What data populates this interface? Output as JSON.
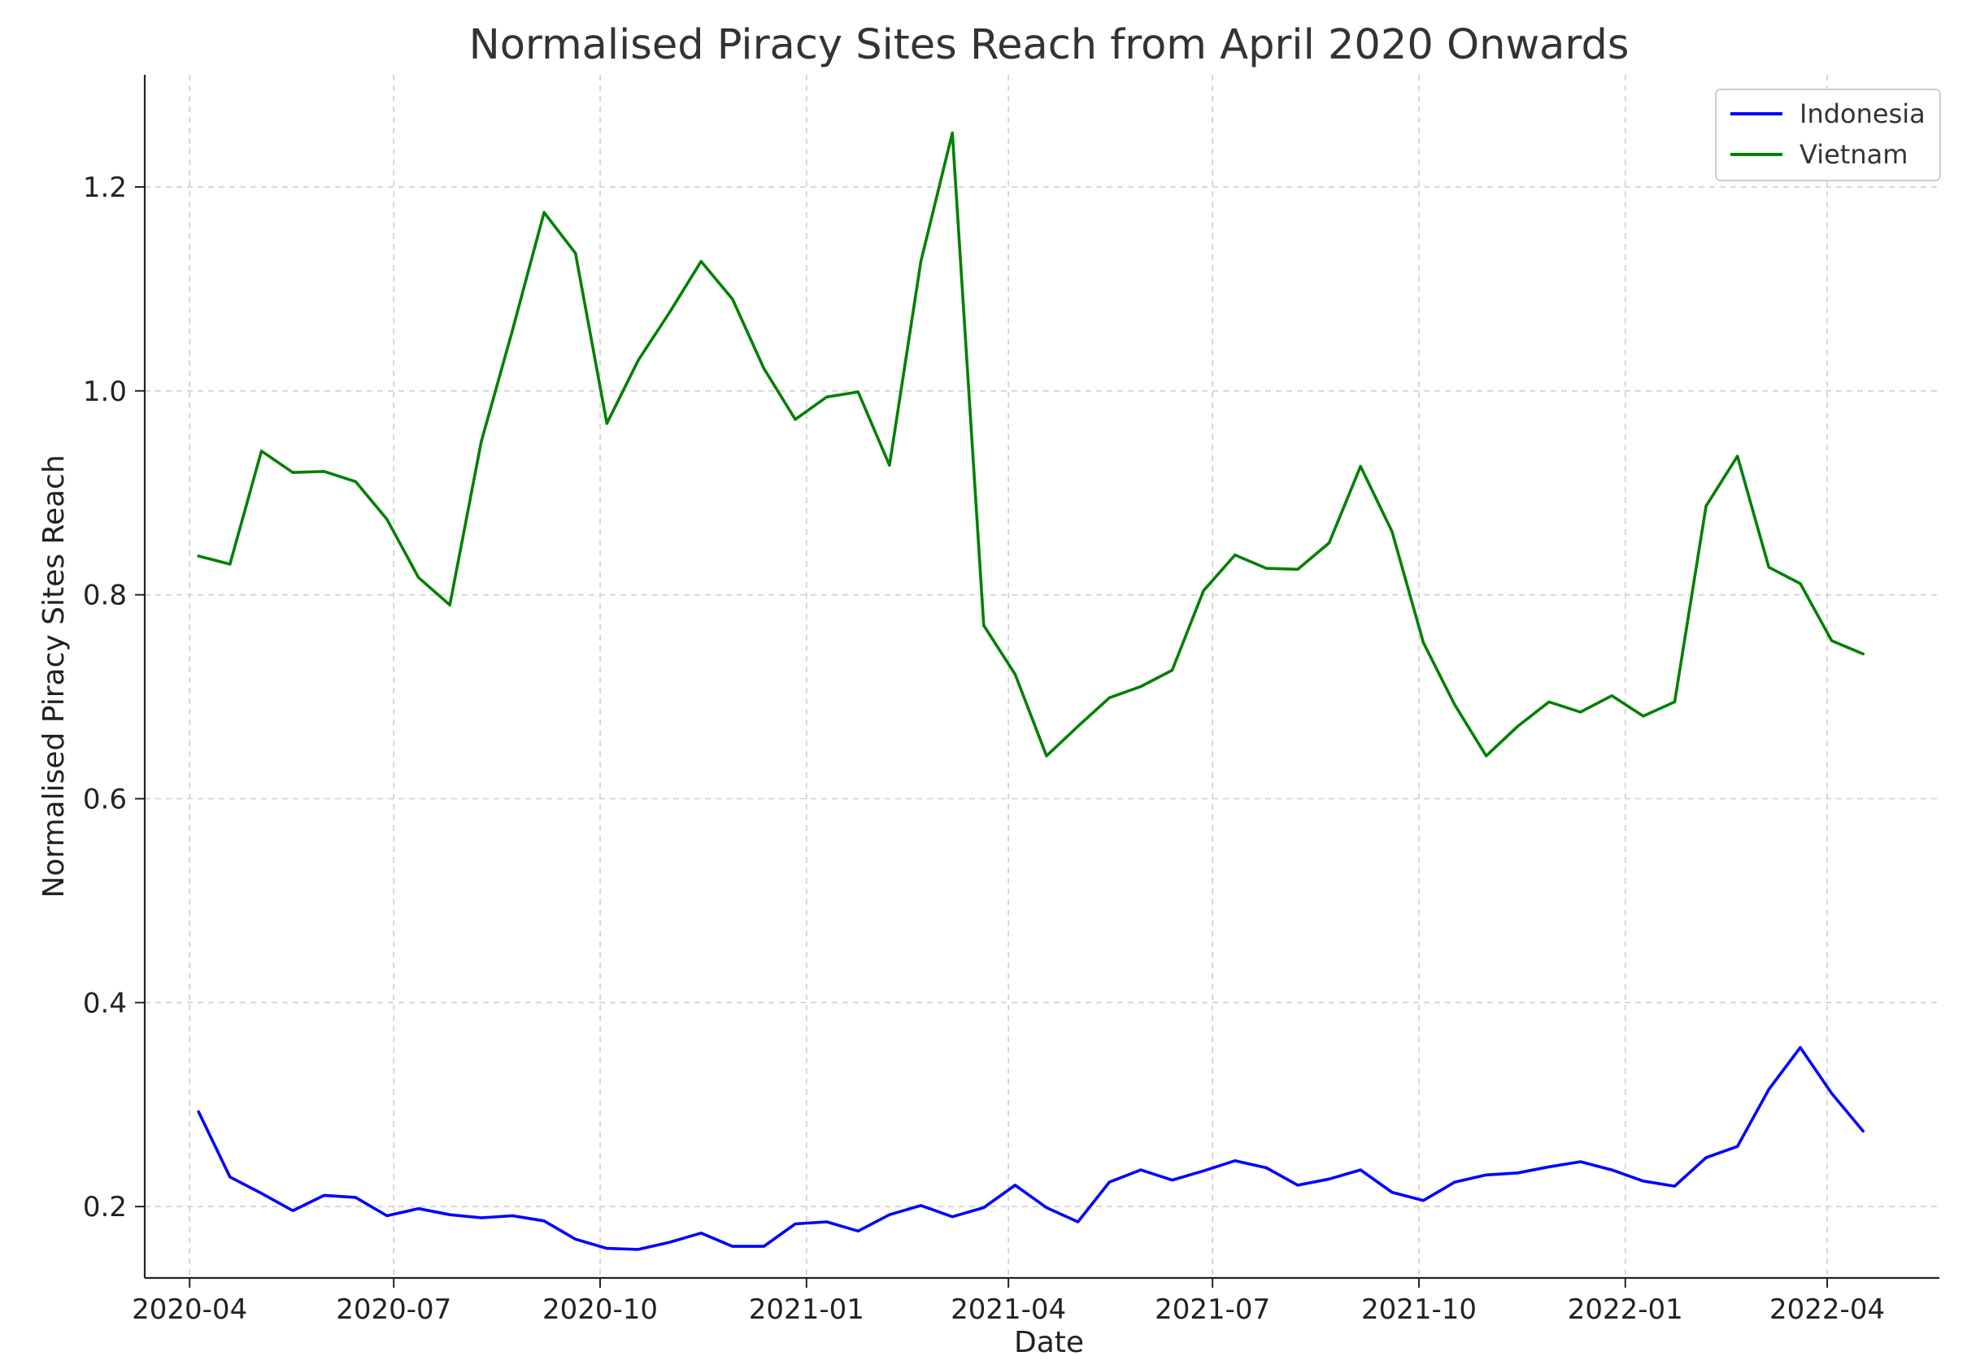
{
  "chart_data": {
    "type": "line",
    "title": "Normalised Piracy Sites Reach from April 2020 Onwards",
    "xlabel": "Date",
    "ylabel": "Normalised Piracy Sites Reach",
    "x_ticks": [
      "2020-04",
      "2020-07",
      "2020-10",
      "2021-01",
      "2021-04",
      "2021-07",
      "2021-10",
      "2022-01",
      "2022-04"
    ],
    "x_tick_dates": [
      "2020-04-01",
      "2020-07-01",
      "2020-10-01",
      "2021-01-01",
      "2021-04-01",
      "2021-07-01",
      "2021-10-01",
      "2022-01-01",
      "2022-04-01"
    ],
    "y_ticks": [
      0.2,
      0.4,
      0.6,
      0.8,
      1.0,
      1.2
    ],
    "y_tick_labels": [
      "0.2",
      "0.4",
      "0.6",
      "0.8",
      "1.0",
      "1.2"
    ],
    "xlim": [
      "2020-03-12",
      "2022-05-21"
    ],
    "ylim": [
      0.13,
      1.31
    ],
    "grid": true,
    "legend_position": "top-right",
    "x": [
      "2020-04-05",
      "2020-04-19",
      "2020-05-03",
      "2020-05-17",
      "2020-05-31",
      "2020-06-14",
      "2020-06-28",
      "2020-07-12",
      "2020-07-26",
      "2020-08-09",
      "2020-08-23",
      "2020-09-06",
      "2020-09-20",
      "2020-10-04",
      "2020-10-18",
      "2020-11-01",
      "2020-11-15",
      "2020-11-29",
      "2020-12-13",
      "2020-12-27",
      "2021-01-10",
      "2021-01-24",
      "2021-02-07",
      "2021-02-21",
      "2021-03-07",
      "2021-03-21",
      "2021-04-04",
      "2021-04-18",
      "2021-05-02",
      "2021-05-16",
      "2021-05-30",
      "2021-06-13",
      "2021-06-27",
      "2021-07-11",
      "2021-07-25",
      "2021-08-08",
      "2021-08-22",
      "2021-09-05",
      "2021-09-19",
      "2021-10-03",
      "2021-10-17",
      "2021-10-31",
      "2021-11-14",
      "2021-11-28",
      "2021-12-12",
      "2021-12-26",
      "2022-01-09",
      "2022-01-23",
      "2022-02-06",
      "2022-02-20",
      "2022-03-06",
      "2022-03-20",
      "2022-04-03",
      "2022-04-17"
    ],
    "series": [
      {
        "name": "Indonesia",
        "color": "#0000ff",
        "values": [
          0.293,
          0.229,
          0.213,
          0.196,
          0.211,
          0.209,
          0.191,
          0.198,
          0.192,
          0.189,
          0.191,
          0.186,
          0.168,
          0.159,
          0.158,
          0.165,
          0.174,
          0.161,
          0.161,
          0.183,
          0.185,
          0.176,
          0.192,
          0.201,
          0.19,
          0.199,
          0.221,
          0.199,
          0.185,
          0.224,
          0.236,
          0.226,
          0.235,
          0.245,
          0.238,
          0.221,
          0.227,
          0.236,
          0.214,
          0.206,
          0.224,
          0.231,
          0.233,
          0.239,
          0.244,
          0.236,
          0.225,
          0.22,
          0.248,
          0.259,
          0.315,
          0.356,
          0.311,
          0.274
        ]
      },
      {
        "name": "Vietnam",
        "color": "#008000",
        "values": [
          0.838,
          0.83,
          0.941,
          0.92,
          0.921,
          0.911,
          0.874,
          0.817,
          0.79,
          0.95,
          1.06,
          1.175,
          1.135,
          0.968,
          1.03,
          1.077,
          1.127,
          1.09,
          1.022,
          0.972,
          0.994,
          0.999,
          0.927,
          1.127,
          1.253,
          0.77,
          0.722,
          0.642,
          0.671,
          0.699,
          0.71,
          0.726,
          0.804,
          0.839,
          0.826,
          0.825,
          0.851,
          0.926,
          0.862,
          0.753,
          0.692,
          0.642,
          0.671,
          0.695,
          0.685,
          0.701,
          0.681,
          0.695,
          0.887,
          0.936,
          0.827,
          0.811,
          0.755,
          0.742
        ]
      }
    ]
  }
}
